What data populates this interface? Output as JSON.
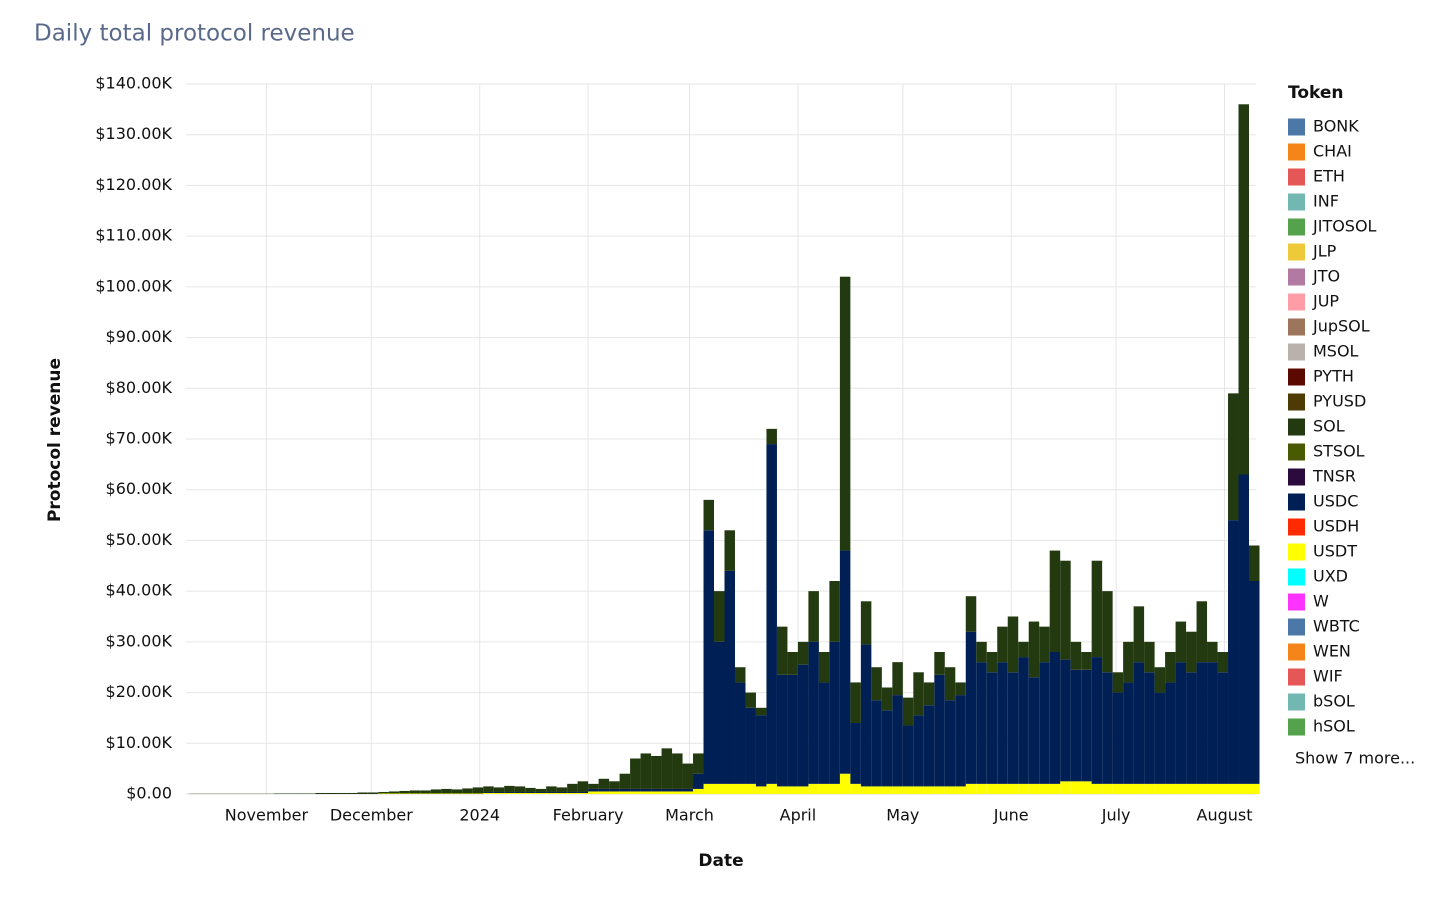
{
  "chart_data": {
    "type": "bar",
    "stacked": true,
    "title": "Daily total protocol revenue",
    "x_label": "Date",
    "y_label": "Protocol revenue",
    "legend_title": "Token",
    "legend_more": "Show 7 more...",
    "grid": true,
    "bar_days": 3,
    "xlim": [
      "2023-10-09",
      "2024-08-10"
    ],
    "xticks": [
      {
        "value": "2023-11-01",
        "label": "November"
      },
      {
        "value": "2023-12-01",
        "label": "December"
      },
      {
        "value": "2024-01-01",
        "label": "2024"
      },
      {
        "value": "2024-02-01",
        "label": "February"
      },
      {
        "value": "2024-03-01",
        "label": "March"
      },
      {
        "value": "2024-04-01",
        "label": "April"
      },
      {
        "value": "2024-05-01",
        "label": "May"
      },
      {
        "value": "2024-06-01",
        "label": "June"
      },
      {
        "value": "2024-07-01",
        "label": "July"
      },
      {
        "value": "2024-08-01",
        "label": "August"
      }
    ],
    "ylim": [
      0,
      140000
    ],
    "yticks": [
      {
        "value": 0,
        "label": "$0.00"
      },
      {
        "value": 10000,
        "label": "$10.00K"
      },
      {
        "value": 20000,
        "label": "$20.00K"
      },
      {
        "value": 30000,
        "label": "$30.00K"
      },
      {
        "value": 40000,
        "label": "$40.00K"
      },
      {
        "value": 50000,
        "label": "$50.00K"
      },
      {
        "value": 60000,
        "label": "$60.00K"
      },
      {
        "value": 70000,
        "label": "$70.00K"
      },
      {
        "value": 80000,
        "label": "$80.00K"
      },
      {
        "value": 90000,
        "label": "$90.00K"
      },
      {
        "value": 100000,
        "label": "$100.00K"
      },
      {
        "value": 110000,
        "label": "$110.00K"
      },
      {
        "value": 120000,
        "label": "$120.00K"
      },
      {
        "value": 130000,
        "label": "$130.00K"
      },
      {
        "value": 140000,
        "label": "$140.00K"
      }
    ],
    "x": [
      "2023-10-10",
      "2023-10-13",
      "2023-10-16",
      "2023-10-19",
      "2023-10-22",
      "2023-10-25",
      "2023-10-28",
      "2023-10-31",
      "2023-11-03",
      "2023-11-06",
      "2023-11-09",
      "2023-11-12",
      "2023-11-15",
      "2023-11-18",
      "2023-11-21",
      "2023-11-24",
      "2023-11-27",
      "2023-11-30",
      "2023-12-03",
      "2023-12-06",
      "2023-12-09",
      "2023-12-12",
      "2023-12-15",
      "2023-12-18",
      "2023-12-21",
      "2023-12-24",
      "2023-12-27",
      "2023-12-30",
      "2024-01-02",
      "2024-01-05",
      "2024-01-08",
      "2024-01-11",
      "2024-01-14",
      "2024-01-17",
      "2024-01-20",
      "2024-01-23",
      "2024-01-26",
      "2024-01-29",
      "2024-02-01",
      "2024-02-04",
      "2024-02-07",
      "2024-02-10",
      "2024-02-13",
      "2024-02-16",
      "2024-02-19",
      "2024-02-22",
      "2024-02-25",
      "2024-02-28",
      "2024-03-02",
      "2024-03-05",
      "2024-03-08",
      "2024-03-11",
      "2024-03-14",
      "2024-03-17",
      "2024-03-20",
      "2024-03-23",
      "2024-03-26",
      "2024-03-29",
      "2024-04-01",
      "2024-04-04",
      "2024-04-07",
      "2024-04-10",
      "2024-04-13",
      "2024-04-16",
      "2024-04-19",
      "2024-04-22",
      "2024-04-25",
      "2024-04-28",
      "2024-05-01",
      "2024-05-04",
      "2024-05-07",
      "2024-05-10",
      "2024-05-13",
      "2024-05-16",
      "2024-05-19",
      "2024-05-22",
      "2024-05-25",
      "2024-05-28",
      "2024-05-31",
      "2024-06-03",
      "2024-06-06",
      "2024-06-09",
      "2024-06-12",
      "2024-06-15",
      "2024-06-18",
      "2024-06-21",
      "2024-06-24",
      "2024-06-27",
      "2024-06-30",
      "2024-07-03",
      "2024-07-06",
      "2024-07-09",
      "2024-07-12",
      "2024-07-15",
      "2024-07-18",
      "2024-07-21",
      "2024-07-24",
      "2024-07-27",
      "2024-07-30",
      "2024-08-02",
      "2024-08-05",
      "2024-08-08"
    ],
    "series": [
      {
        "name": "BONK",
        "color": "#4c78a8"
      },
      {
        "name": "CHAI",
        "color": "#f58518"
      },
      {
        "name": "ETH",
        "color": "#e45756"
      },
      {
        "name": "INF",
        "color": "#72b7b2"
      },
      {
        "name": "JITOSOL",
        "color": "#54a24b"
      },
      {
        "name": "JLP",
        "color": "#eeca3b"
      },
      {
        "name": "JTO",
        "color": "#b279a2"
      },
      {
        "name": "JUP",
        "color": "#ff9da6"
      },
      {
        "name": "JupSOL",
        "color": "#9d755d"
      },
      {
        "name": "MSOL",
        "color": "#bab0ac"
      },
      {
        "name": "PYTH",
        "color": "#5c0a00"
      },
      {
        "name": "PYUSD",
        "color": "#4d3a05"
      },
      {
        "name": "SOL",
        "color": "#233a10",
        "values": [
          50,
          50,
          50,
          50,
          50,
          50,
          50,
          50,
          100,
          100,
          100,
          100,
          200,
          200,
          200,
          200,
          300,
          300,
          300,
          400,
          500,
          600,
          600,
          800,
          900,
          800,
          1000,
          1200,
          1100,
          900,
          1200,
          1100,
          800,
          600,
          1100,
          900,
          1600,
          2100,
          1000,
          2000,
          1500,
          3000,
          6000,
          7000,
          6500,
          8000,
          7000,
          5000,
          4000,
          6000,
          10000,
          8000,
          3000,
          3000,
          1500,
          3000,
          9500,
          4500,
          4500,
          10000,
          6000,
          12000,
          54000,
          8000,
          8500,
          6500,
          4500,
          6500,
          5500,
          8500,
          4500,
          4500,
          6500,
          2500,
          7000,
          4000,
          4000,
          7000,
          11000,
          3000,
          11000,
          7000,
          20000,
          19500,
          5500,
          3500,
          19000,
          16000,
          4000,
          8000,
          11000,
          6000,
          5000,
          6000,
          8000,
          8000,
          12000,
          4000,
          4000,
          25000,
          73000,
          7000
        ]
      },
      {
        "name": "STSOL",
        "color": "#4a5a00"
      },
      {
        "name": "TNSR",
        "color": "#2b0a3d"
      },
      {
        "name": "USDC",
        "color": "#001f54",
        "values": [
          0,
          0,
          0,
          0,
          0,
          0,
          0,
          0,
          0,
          0,
          0,
          0,
          0,
          0,
          0,
          0,
          0,
          0,
          0,
          0,
          0,
          0,
          0,
          0,
          0,
          0,
          0,
          0,
          200,
          200,
          200,
          200,
          200,
          200,
          200,
          200,
          200,
          200,
          500,
          500,
          500,
          500,
          500,
          500,
          500,
          500,
          500,
          500,
          3000,
          50000,
          28000,
          42000,
          20000,
          15000,
          14000,
          67000,
          22000,
          22000,
          24000,
          28000,
          20000,
          28000,
          44000,
          12000,
          28000,
          17000,
          15000,
          18000,
          12000,
          14000,
          16000,
          22000,
          17000,
          18000,
          30000,
          24000,
          22000,
          24000,
          22000,
          25000,
          21000,
          24000,
          26000,
          24000,
          22000,
          22000,
          25000,
          22000,
          18000,
          20000,
          24000,
          22000,
          18000,
          20000,
          24000,
          22000,
          24000,
          24000,
          22000,
          52000,
          61000,
          40000
        ]
      },
      {
        "name": "USDH",
        "color": "#ff2a00"
      },
      {
        "name": "USDT",
        "color": "#ffff00",
        "values": [
          0,
          0,
          0,
          0,
          0,
          0,
          0,
          0,
          0,
          0,
          0,
          0,
          0,
          0,
          0,
          0,
          0,
          0,
          100,
          100,
          100,
          100,
          100,
          100,
          100,
          100,
          100,
          100,
          200,
          200,
          200,
          200,
          200,
          200,
          200,
          200,
          200,
          200,
          500,
          500,
          500,
          500,
          500,
          500,
          500,
          500,
          500,
          500,
          1000,
          2000,
          2000,
          2000,
          2000,
          2000,
          1500,
          2000,
          1500,
          1500,
          1500,
          2000,
          2000,
          2000,
          4000,
          2000,
          1500,
          1500,
          1500,
          1500,
          1500,
          1500,
          1500,
          1500,
          1500,
          1500,
          2000,
          2000,
          2000,
          2000,
          2000,
          2000,
          2000,
          2000,
          2000,
          2500,
          2500,
          2500,
          2000,
          2000,
          2000,
          2000,
          2000,
          2000,
          2000,
          2000,
          2000,
          2000,
          2000,
          2000,
          2000,
          2000,
          2000,
          2000
        ]
      },
      {
        "name": "UXD",
        "color": "#00ffff"
      },
      {
        "name": "W",
        "color": "#ff33ff"
      },
      {
        "name": "WBTC",
        "color": "#4c78a8"
      },
      {
        "name": "WEN",
        "color": "#f58518"
      },
      {
        "name": "WIF",
        "color": "#e45756"
      },
      {
        "name": "bSOL",
        "color": "#72b7b2"
      },
      {
        "name": "hSOL",
        "color": "#54a24b"
      }
    ]
  }
}
